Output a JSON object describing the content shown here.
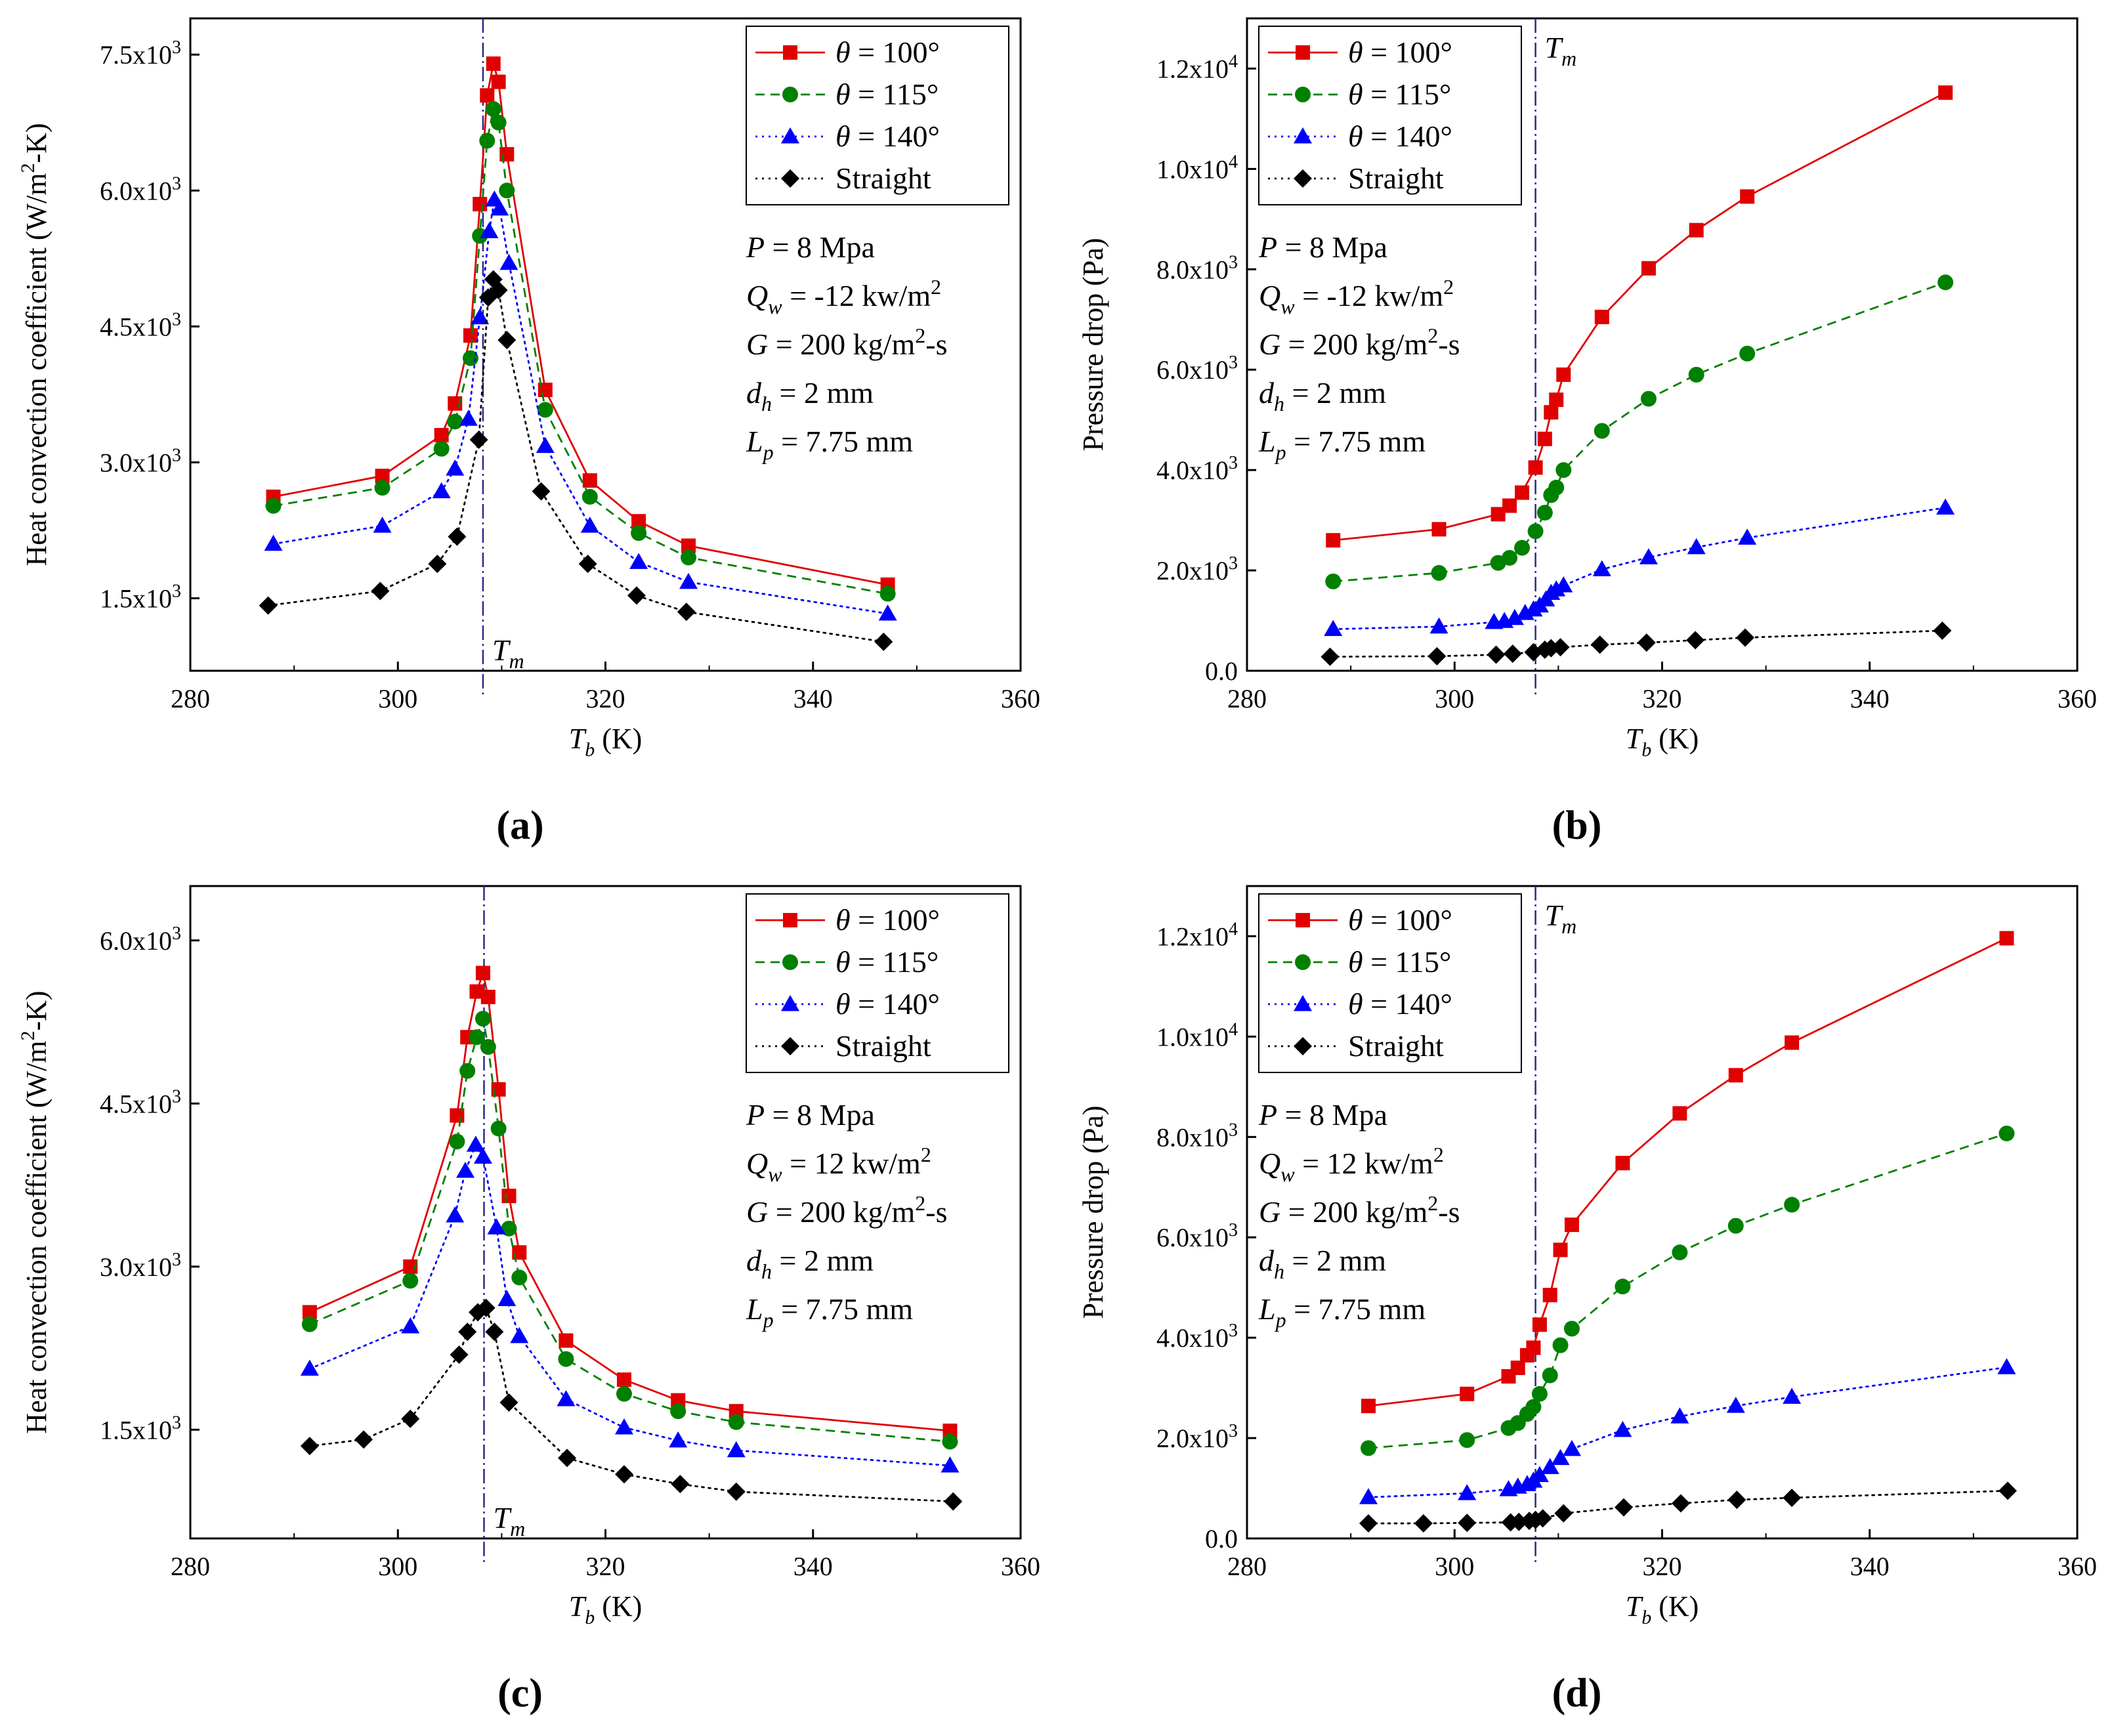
{
  "chart_data": [
    {
      "type": "line",
      "panel_label": "(a)",
      "ylabel": "Heat convection coefficient (W/m2-K)",
      "ylabel_parts": [
        "Heat convection coefficient (W/m",
        "2",
        "-K)"
      ],
      "xlabel_main": "T",
      "xlabel_sub": "b",
      "xlabel_rest": " (K)",
      "xlim": [
        280,
        360
      ],
      "ylim": [
        700,
        7900
      ],
      "xticks": [
        280,
        300,
        320,
        340,
        360
      ],
      "yticks": [
        {
          "v": 1500,
          "m": "1.5x10",
          "e": "3"
        },
        {
          "v": 3000,
          "m": "3.0x10",
          "e": "3"
        },
        {
          "v": 4500,
          "m": "4.5x10",
          "e": "3"
        },
        {
          "v": 6000,
          "m": "6.0x10",
          "e": "3"
        },
        {
          "v": 7500,
          "m": "7.5x10",
          "e": "3"
        }
      ],
      "vline": {
        "x": 308.2,
        "label_main": "T",
        "label_sub": "m",
        "label_pos": "bottom"
      },
      "legend": {
        "position": "top-right"
      },
      "params_position": "right",
      "params": [
        {
          "main": "P",
          "rest": " = 8 Mpa"
        },
        {
          "main": "Q",
          "sub": "w",
          "rest": " = -12 kw/m",
          "sup": "2"
        },
        {
          "main": "G",
          "rest": " = 200 kg/m",
          "sup": "2",
          "rest2": "-s"
        },
        {
          "main": "d",
          "sub": "h",
          "rest": " = 2 mm"
        },
        {
          "main": "L",
          "sub": "p",
          "rest": " = 7.75 mm"
        }
      ],
      "series": [
        {
          "name": "θ = 100°",
          "color": "#e00000",
          "marker": "square",
          "dash": "solid",
          "x": [
            288,
            298.5,
            304.2,
            305.5,
            307,
            307.9,
            308.6,
            309.2,
            309.7,
            310.5,
            314.2,
            318.5,
            323.2,
            328,
            347.2
          ],
          "y": [
            2620,
            2850,
            3300,
            3650,
            4400,
            5850,
            7050,
            7400,
            7200,
            6400,
            3800,
            2800,
            2350,
            2080,
            1650
          ]
        },
        {
          "name": "θ = 115°",
          "color": "#008000",
          "marker": "circle",
          "dash": "dashed",
          "x": [
            288,
            298.5,
            304.2,
            305.5,
            307,
            307.9,
            308.6,
            309.2,
            309.7,
            310.5,
            314.2,
            318.5,
            323.2,
            328,
            347.2
          ],
          "y": [
            2520,
            2720,
            3150,
            3450,
            4150,
            5500,
            6550,
            6900,
            6750,
            6000,
            3580,
            2620,
            2220,
            1950,
            1550
          ]
        },
        {
          "name": "θ = 140°",
          "color": "#0000ff",
          "marker": "triangle",
          "dash": "dotted",
          "x": [
            288,
            298.5,
            304.2,
            305.5,
            306.8,
            307.9,
            308.8,
            309.3,
            309.8,
            310.7,
            314.2,
            318.5,
            323.2,
            328,
            347.2
          ],
          "y": [
            2100,
            2300,
            2680,
            2930,
            3480,
            4600,
            5550,
            5900,
            5800,
            5200,
            3180,
            2300,
            1900,
            1680,
            1330
          ]
        },
        {
          "name": "Straight",
          "color": "#000000",
          "marker": "diamond",
          "dash": "dotted",
          "x": [
            287.5,
            298.3,
            303.8,
            305.7,
            307.8,
            308.7,
            309.2,
            309.7,
            310.5,
            313.8,
            318.3,
            323,
            327.8,
            346.8
          ],
          "y": [
            1420,
            1580,
            1880,
            2180,
            3250,
            4820,
            5020,
            4900,
            4350,
            2680,
            1880,
            1530,
            1350,
            1020
          ]
        }
      ]
    },
    {
      "type": "line",
      "panel_label": "(b)",
      "ylabel": "Pressure drop (Pa)",
      "ylabel_parts": [
        "Pressure drop (Pa)",
        "",
        ""
      ],
      "xlabel_main": "T",
      "xlabel_sub": "b",
      "xlabel_rest": " (K)",
      "xlim": [
        280,
        360
      ],
      "ylim": [
        0,
        13000
      ],
      "xticks": [
        280,
        300,
        320,
        340,
        360
      ],
      "yticks": [
        {
          "v": 0,
          "m": "0.0",
          "e": ""
        },
        {
          "v": 2000,
          "m": "2.0x10",
          "e": "3"
        },
        {
          "v": 4000,
          "m": "4.0x10",
          "e": "3"
        },
        {
          "v": 6000,
          "m": "6.0x10",
          "e": "3"
        },
        {
          "v": 8000,
          "m": "8.0x10",
          "e": "3"
        },
        {
          "v": 10000,
          "m": "1.0x10",
          "e": "4"
        },
        {
          "v": 12000,
          "m": "1.2x10",
          "e": "4"
        }
      ],
      "vline": {
        "x": 307.8,
        "label_main": "T",
        "label_sub": "m",
        "label_pos": "top"
      },
      "legend": {
        "position": "top-left"
      },
      "params_position": "left",
      "params": [
        {
          "main": "P",
          "rest": " = 8 Mpa"
        },
        {
          "main": "Q",
          "sub": "w",
          "rest": " = -12 kw/m",
          "sup": "2"
        },
        {
          "main": "G",
          "rest": " = 200 kg/m",
          "sup": "2",
          "rest2": "-s"
        },
        {
          "main": "d",
          "sub": "h",
          "rest": " = 2 mm"
        },
        {
          "main": "L",
          "sub": "p",
          "rest": " = 7.75 mm"
        }
      ],
      "series": [
        {
          "name": "θ = 100°",
          "color": "#e00000",
          "marker": "square",
          "dash": "solid",
          "x": [
            288.3,
            298.5,
            304.2,
            305.3,
            306.5,
            307.8,
            308.7,
            309.3,
            309.8,
            310.5,
            314.2,
            318.7,
            323.3,
            328.2,
            347.3
          ],
          "y": [
            2600,
            2820,
            3120,
            3290,
            3550,
            4050,
            4620,
            5150,
            5400,
            5900,
            7050,
            8020,
            8780,
            9450,
            11520
          ]
        },
        {
          "name": "θ = 115°",
          "color": "#008000",
          "marker": "circle",
          "dash": "dashed",
          "x": [
            288.3,
            298.5,
            304.2,
            305.3,
            306.5,
            307.8,
            308.7,
            309.3,
            309.8,
            310.5,
            314.2,
            318.7,
            323.3,
            328.2,
            347.3
          ],
          "y": [
            1780,
            1950,
            2150,
            2250,
            2450,
            2780,
            3150,
            3500,
            3650,
            4000,
            4780,
            5420,
            5900,
            6320,
            7740
          ]
        },
        {
          "name": "θ = 140°",
          "color": "#0000ff",
          "marker": "triangle",
          "dash": "dotted",
          "x": [
            288.3,
            298.5,
            303.8,
            304.8,
            305.8,
            306.8,
            307.6,
            308.2,
            308.8,
            309.3,
            309.8,
            310.5,
            314.2,
            318.7,
            323.3,
            328.2,
            347.3
          ],
          "y": [
            830,
            880,
            970,
            990,
            1050,
            1150,
            1220,
            1300,
            1420,
            1550,
            1620,
            1700,
            2020,
            2260,
            2460,
            2650,
            3250
          ]
        },
        {
          "name": "Straight",
          "color": "#000000",
          "marker": "diamond",
          "dash": "dotted",
          "x": [
            288,
            298.3,
            304,
            305.6,
            307.6,
            308.7,
            309.3,
            310.2,
            314,
            318.5,
            323.2,
            328,
            347
          ],
          "y": [
            280,
            290,
            320,
            340,
            370,
            420,
            450,
            470,
            520,
            560,
            610,
            660,
            800
          ]
        }
      ]
    },
    {
      "type": "line",
      "panel_label": "(c)",
      "ylabel": "Heat convection coefficient (W/m2-K)",
      "ylabel_parts": [
        "Heat convection coefficient (W/m",
        "2",
        "-K)"
      ],
      "xlabel_main": "T",
      "xlabel_sub": "b",
      "xlabel_rest": " (K)",
      "xlim": [
        280,
        360
      ],
      "ylim": [
        500,
        6500
      ],
      "xticks": [
        280,
        300,
        320,
        340,
        360
      ],
      "yticks": [
        {
          "v": 1500,
          "m": "1.5x10",
          "e": "3"
        },
        {
          "v": 3000,
          "m": "3.0x10",
          "e": "3"
        },
        {
          "v": 4500,
          "m": "4.5x10",
          "e": "3"
        },
        {
          "v": 6000,
          "m": "6.0x10",
          "e": "3"
        }
      ],
      "vline": {
        "x": 308.3,
        "label_main": "T",
        "label_sub": "m",
        "label_pos": "bottom"
      },
      "legend": {
        "position": "top-right"
      },
      "params_position": "right",
      "params": [
        {
          "main": "P",
          "rest": " = 8 Mpa"
        },
        {
          "main": "Q",
          "sub": "w",
          "rest": " = 12 kw/m",
          "sup": "2"
        },
        {
          "main": "G",
          "rest": " = 200 kg/m",
          "sup": "2",
          "rest2": "-s"
        },
        {
          "main": "d",
          "sub": "h",
          "rest": " = 2 mm"
        },
        {
          "main": "L",
          "sub": "p",
          "rest": " = 7.75 mm"
        }
      ],
      "series": [
        {
          "name": "θ = 100°",
          "color": "#e00000",
          "marker": "square",
          "dash": "solid",
          "x": [
            291.5,
            301.2,
            305.7,
            306.7,
            307.6,
            308.2,
            308.7,
            309.7,
            310.7,
            311.7,
            316.2,
            321.8,
            327,
            332.6,
            353.2
          ],
          "y": [
            2580,
            3000,
            4390,
            5110,
            5530,
            5700,
            5480,
            4630,
            3650,
            3130,
            2320,
            1960,
            1770,
            1670,
            1490
          ]
        },
        {
          "name": "θ = 115°",
          "color": "#008000",
          "marker": "circle",
          "dash": "dashed",
          "x": [
            291.5,
            301.2,
            305.7,
            306.7,
            307.6,
            308.2,
            308.7,
            309.7,
            310.7,
            311.7,
            316.2,
            321.8,
            327,
            332.6,
            353.2
          ],
          "y": [
            2470,
            2870,
            4150,
            4800,
            5110,
            5280,
            5020,
            4270,
            3350,
            2900,
            2150,
            1830,
            1670,
            1570,
            1390
          ]
        },
        {
          "name": "θ = 140°",
          "color": "#0000ff",
          "marker": "triangle",
          "dash": "dotted",
          "x": [
            291.5,
            301.2,
            305.5,
            306.5,
            307.5,
            308.2,
            309.5,
            310.5,
            311.7,
            316.2,
            321.8,
            327,
            332.6,
            353.2
          ],
          "y": [
            2060,
            2450,
            3470,
            3880,
            4120,
            4010,
            3360,
            2700,
            2360,
            1780,
            1520,
            1400,
            1310,
            1170
          ]
        },
        {
          "name": "Straight",
          "color": "#000000",
          "marker": "diamond",
          "dash": "dotted",
          "x": [
            291.5,
            296.7,
            301.2,
            305.9,
            306.7,
            307.7,
            308.5,
            309.3,
            310.7,
            316.3,
            321.8,
            327.2,
            332.6,
            353.5
          ],
          "y": [
            1350,
            1410,
            1600,
            2190,
            2400,
            2580,
            2620,
            2400,
            1750,
            1240,
            1090,
            1000,
            930,
            840
          ]
        }
      ]
    },
    {
      "type": "line",
      "panel_label": "(d)",
      "ylabel": "Pressure drop (Pa)",
      "ylabel_parts": [
        "Pressure drop (Pa)",
        "",
        ""
      ],
      "xlabel_main": "T",
      "xlabel_sub": "b",
      "xlabel_rest": " (K)",
      "xlim": [
        280,
        360
      ],
      "ylim": [
        0,
        13000
      ],
      "xticks": [
        280,
        300,
        320,
        340,
        360
      ],
      "yticks": [
        {
          "v": 0,
          "m": "0.0",
          "e": ""
        },
        {
          "v": 2000,
          "m": "2.0x10",
          "e": "3"
        },
        {
          "v": 4000,
          "m": "4.0x10",
          "e": "3"
        },
        {
          "v": 6000,
          "m": "6.0x10",
          "e": "3"
        },
        {
          "v": 8000,
          "m": "8.0x10",
          "e": "3"
        },
        {
          "v": 10000,
          "m": "1.0x10",
          "e": "4"
        },
        {
          "v": 12000,
          "m": "1.2x10",
          "e": "4"
        }
      ],
      "vline": {
        "x": 307.8,
        "label_main": "T",
        "label_sub": "m",
        "label_pos": "top"
      },
      "legend": {
        "position": "top-left"
      },
      "params_position": "left",
      "params": [
        {
          "main": "P",
          "rest": " = 8 Mpa"
        },
        {
          "main": "Q",
          "sub": "w",
          "rest": " = 12 kw/m",
          "sup": "2"
        },
        {
          "main": "G",
          "rest": " = 200 kg/m",
          "sup": "2",
          "rest2": "-s"
        },
        {
          "main": "d",
          "sub": "h",
          "rest": " = 2 mm"
        },
        {
          "main": "L",
          "sub": "p",
          "rest": " = 7.75 mm"
        }
      ],
      "series": [
        {
          "name": "θ = 100°",
          "color": "#e00000",
          "marker": "square",
          "dash": "solid",
          "x": [
            291.7,
            301.2,
            305.2,
            306.1,
            307.0,
            307.6,
            308.2,
            309.2,
            310.2,
            311.3,
            316.2,
            321.7,
            327.1,
            332.5,
            353.2
          ],
          "y": [
            2640,
            2880,
            3230,
            3400,
            3650,
            3800,
            4260,
            4850,
            5750,
            6250,
            7480,
            8470,
            9230,
            9880,
            11960
          ]
        },
        {
          "name": "θ = 115°",
          "color": "#008000",
          "marker": "circle",
          "dash": "dashed",
          "x": [
            291.7,
            301.2,
            305.2,
            306.1,
            307.0,
            307.6,
            308.2,
            309.2,
            310.2,
            311.3,
            316.2,
            321.7,
            327.1,
            332.5,
            353.2
          ],
          "y": [
            1800,
            1960,
            2200,
            2300,
            2480,
            2620,
            2880,
            3250,
            3850,
            4180,
            5020,
            5700,
            6230,
            6650,
            8070
          ]
        },
        {
          "name": "θ = 140°",
          "color": "#0000ff",
          "marker": "triangle",
          "dash": "dotted",
          "x": [
            291.7,
            301.2,
            305.2,
            306.1,
            307.0,
            307.6,
            308.2,
            309.2,
            310.2,
            311.3,
            316.2,
            321.7,
            327.1,
            332.5,
            353.2
          ],
          "y": [
            820,
            900,
            980,
            1030,
            1080,
            1150,
            1260,
            1420,
            1600,
            1780,
            2160,
            2430,
            2640,
            2820,
            3410
          ]
        },
        {
          "name": "Straight",
          "color": "#000000",
          "marker": "diamond",
          "dash": "dotted",
          "x": [
            291.7,
            297.0,
            301.2,
            305.4,
            306.2,
            307.2,
            307.8,
            308.5,
            310.5,
            316.3,
            321.8,
            327.2,
            332.5,
            353.3
          ],
          "y": [
            300,
            300,
            310,
            320,
            330,
            350,
            370,
            400,
            500,
            620,
            700,
            770,
            810,
            950
          ]
        }
      ]
    }
  ]
}
